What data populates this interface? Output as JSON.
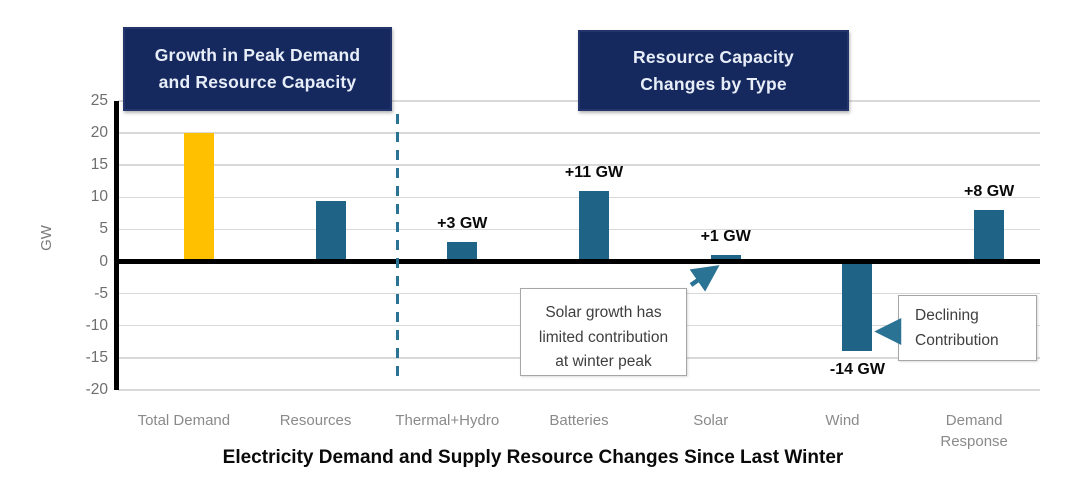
{
  "chart_data": {
    "type": "bar",
    "title": "Electricity Demand and Supply Resource Changes Since Last Winter",
    "ylabel": "GW",
    "ylim": [
      -20,
      25
    ],
    "yticks": [
      25,
      20,
      15,
      10,
      5,
      0,
      -5,
      -10,
      -15,
      -20
    ],
    "grid": true,
    "legend": false,
    "categories": [
      "Total Demand",
      "Resources",
      "Thermal+Hydro",
      "Batteries",
      "Solar",
      "Wind",
      "Demand Response"
    ],
    "category_label_lines": [
      [
        "Total Demand"
      ],
      [
        "Resources"
      ],
      [
        "Thermal+Hydro"
      ],
      [
        "Batteries"
      ],
      [
        "Solar"
      ],
      [
        "Wind"
      ],
      [
        "Demand",
        "Response"
      ]
    ],
    "values": [
      20,
      9.5,
      3,
      11,
      1,
      -14,
      8
    ],
    "data_labels": [
      "",
      "",
      "+3 GW",
      "+11 GW",
      "+1 GW",
      "-14 GW",
      "+8 GW"
    ],
    "bar_colors": [
      "#FFC000",
      "#1F6386",
      "#1F6386",
      "#1F6386",
      "#1F6386",
      "#1F6386",
      "#1F6386"
    ],
    "section_divider_after_category": "Resources"
  },
  "header_boxes": [
    {
      "lines": [
        "Growth in Peak Demand",
        "and Resource Capacity"
      ]
    },
    {
      "lines": [
        "Resource Capacity",
        "Changes by Type"
      ]
    }
  ],
  "annotations": [
    {
      "id": "solar-note",
      "lines": [
        "Solar growth has",
        "limited  contribution",
        "at winter peak"
      ],
      "points_to": "Solar"
    },
    {
      "id": "wind-note",
      "lines": [
        "Declining",
        "Contribution"
      ],
      "points_to": "Wind"
    }
  ],
  "colors": {
    "demand_bar": "#FFC000",
    "resource_bar": "#1F6386",
    "divider_dash": "#2B7394",
    "arrow": "#2B7394",
    "header_box_bg": "#16295F",
    "header_box_border": "#24356E",
    "header_box_text": "#E8EEF8",
    "gridline": "#D9D9D9",
    "axis": "#000000",
    "tick_text": "#6E6E6E",
    "category_text": "#8A8A8A",
    "annotation_border": "#A6A6A6",
    "annotation_text": "#3F3F3F"
  }
}
